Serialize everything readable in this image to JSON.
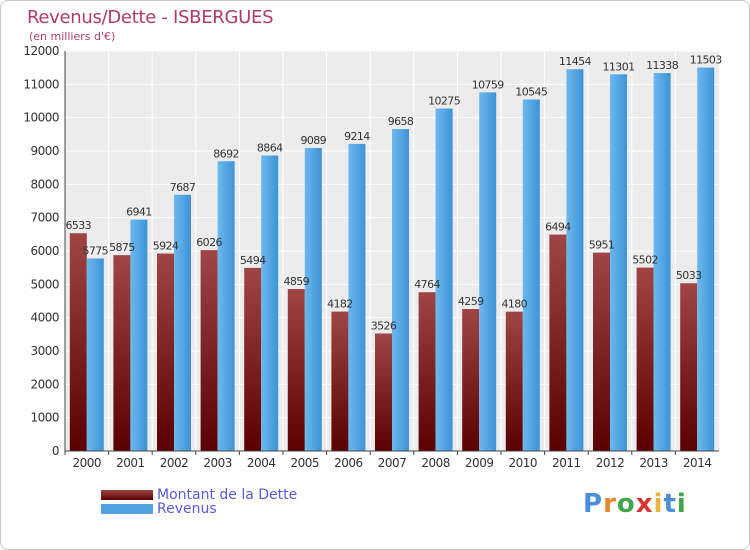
{
  "header": {
    "title": "Revenus/Dette - ISBERGUES",
    "subtitle": "(en milliers d'€)"
  },
  "legend": {
    "items": [
      {
        "label": "Montant de la Dette",
        "color": "#7a1c1c"
      },
      {
        "label": "Revenus",
        "color": "#4fa3e0"
      }
    ]
  },
  "logo": {
    "text": "Proxiti"
  },
  "chart_data": {
    "type": "bar",
    "title": "Revenus/Dette - ISBERGUES",
    "subtitle": "(en milliers d'€)",
    "categories": [
      "2000",
      "2001",
      "2002",
      "2003",
      "2004",
      "2005",
      "2006",
      "2007",
      "2008",
      "2009",
      "2010",
      "2011",
      "2012",
      "2013",
      "2014"
    ],
    "series": [
      {
        "name": "Montant de la Dette",
        "color": "#7a1c1c",
        "values": [
          6533,
          5875,
          5924,
          6026,
          5494,
          4859,
          4182,
          3526,
          4764,
          4259,
          4180,
          6494,
          5951,
          5502,
          5033
        ],
        "labels": [
          "6533",
          "5875",
          "5924",
          "6026",
          "5494",
          "4859",
          "4182",
          "3526",
          "4764",
          "4259",
          "4180",
          "6494",
          "5951",
          "5502",
          "5033"
        ]
      },
      {
        "name": "Revenus",
        "color": "#4fa3e0",
        "values": [
          5775,
          6941,
          7687,
          8692,
          8864,
          9089,
          9214,
          9658,
          10275,
          10759,
          10545,
          11454,
          11301,
          11338,
          11503
        ],
        "labels": [
          "5775",
          "6941",
          "7687",
          "8692",
          "8864",
          "9089",
          "9214",
          "9658",
          "10275",
          "10759",
          "10545",
          "11454",
          "11301",
          "11338",
          "11503"
        ]
      }
    ],
    "yticks": [
      0,
      1000,
      2000,
      3000,
      4000,
      5000,
      6000,
      7000,
      8000,
      9000,
      10000,
      11000,
      12000
    ],
    "ylim": [
      0,
      12000
    ],
    "grid": true,
    "legend": "bottom-left"
  }
}
